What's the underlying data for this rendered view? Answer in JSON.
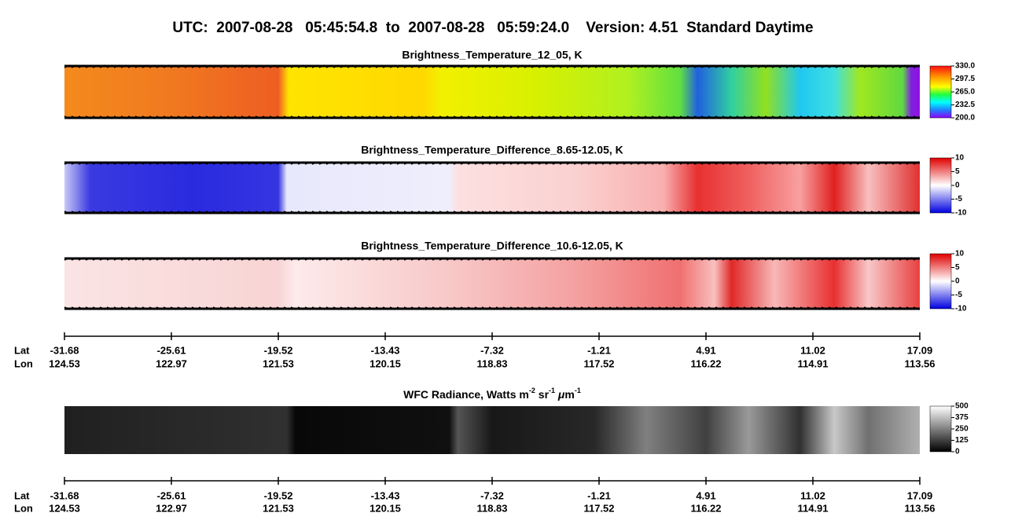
{
  "header": {
    "title": "UTC:  2007-08-28   05:45:54.8  to  2007-08-28   05:59:24.0    Version: 4.51  Standard Daytime"
  },
  "panels": [
    {
      "title": "Brightness_Temperature_12_05, K",
      "colorbar": [
        "330.0",
        "297.5",
        "265.0",
        "232.5",
        "200.0"
      ]
    },
    {
      "title": "Brightness_Temperature_Difference_8.65-12.05, K",
      "colorbar": [
        "10",
        "5",
        "0",
        "-5",
        "-10"
      ]
    },
    {
      "title": "Brightness_Temperature_Difference_10.6-12.05, K",
      "colorbar": [
        "10",
        "5",
        "0",
        "-5",
        "-10"
      ]
    }
  ],
  "wfc": {
    "title_parts": [
      "WFC Radiance, Watts m",
      "-2",
      " sr",
      "-1",
      " ",
      "μ",
      "m",
      "-1"
    ],
    "colorbar": [
      "500",
      "375",
      "250",
      "125",
      "0"
    ]
  },
  "axes": [
    {
      "lat_label": "Lat",
      "lon_label": "Lon",
      "lat": [
        "-31.68",
        "-25.61",
        "-19.52",
        "-13.43",
        "-7.32",
        "-1.21",
        "4.91",
        "11.02",
        "17.09"
      ],
      "lon": [
        "124.53",
        "122.97",
        "121.53",
        "120.15",
        "118.83",
        "117.52",
        "116.22",
        "114.91",
        "113.56"
      ]
    },
    {
      "lat_label": "Lat",
      "lon_label": "Lon",
      "lat": [
        "-31.68",
        "-25.61",
        "-19.52",
        "-13.43",
        "-7.32",
        "-1.21",
        "4.91",
        "11.02",
        "17.09"
      ],
      "lon": [
        "124.53",
        "122.97",
        "121.53",
        "120.15",
        "118.83",
        "117.52",
        "116.22",
        "114.91",
        "113.56"
      ]
    }
  ]
}
